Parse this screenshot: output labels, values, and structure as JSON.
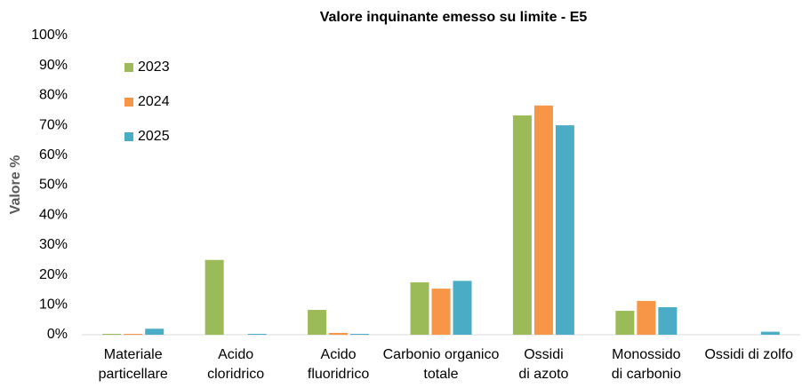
{
  "chart_data": {
    "type": "bar",
    "title": "Valore inquinante emesso su limite - E5",
    "y_label": "Valore %",
    "categories": [
      "Materiale\nparticellare",
      "Acido\ncloridrico",
      "Acido\nfluoridrico",
      "Carbonio organico\ntotale",
      "Ossidi\ndi azoto",
      "Monossido\ndi carbonio",
      "Ossidi di zolfo"
    ],
    "series": [
      {
        "name": "2023",
        "color": "#9bbb59",
        "values": [
          0.3,
          25,
          8.3,
          17.5,
          73.3,
          8,
          0
        ]
      },
      {
        "name": "2024",
        "color": "#f79646",
        "values": [
          0.3,
          0,
          0.6,
          15.4,
          76.6,
          11.3,
          0
        ]
      },
      {
        "name": "2025",
        "color": "#4bacc6",
        "values": [
          2,
          0.3,
          0.3,
          18,
          70,
          9.2,
          1
        ]
      }
    ],
    "ylim": [
      0,
      100
    ],
    "yticks": [
      {
        "value": 0,
        "label": "0%"
      },
      {
        "value": 10,
        "label": "10%"
      },
      {
        "value": 20,
        "label": "20%"
      },
      {
        "value": 30,
        "label": "30%"
      },
      {
        "value": 40,
        "label": "40%"
      },
      {
        "value": 50,
        "label": "50%"
      },
      {
        "value": 60,
        "label": "60%"
      },
      {
        "value": 70,
        "label": "70%"
      },
      {
        "value": 80,
        "label": "80%"
      },
      {
        "value": 90,
        "label": "90%"
      },
      {
        "value": 100,
        "label": "100%"
      }
    ],
    "grid": false,
    "legend": "upper left"
  }
}
